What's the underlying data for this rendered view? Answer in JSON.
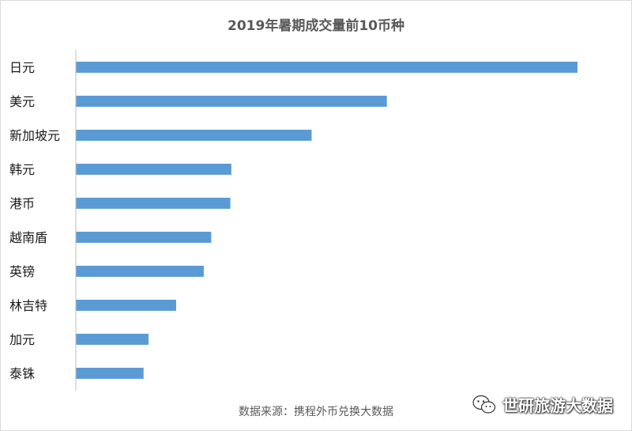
{
  "chart_data": {
    "type": "bar",
    "orientation": "horizontal",
    "title": "2019年暑期成交量前10币种",
    "categories": [
      "日元",
      "美元",
      "新加坡元",
      "韩元",
      "港币",
      "越南盾",
      "英镑",
      "林吉特",
      "加元",
      "泰铢"
    ],
    "values": [
      100,
      62,
      47,
      31,
      30.8,
      27,
      25.5,
      20,
      14.5,
      13.5
    ],
    "xlim": [
      0,
      100
    ],
    "grid": false,
    "legend": "none",
    "bar_color": "#5b9bd5",
    "axis_color": "#bfbfbf"
  },
  "source": "数据来源：携程外币兑换大数据",
  "watermark": {
    "icon": "wechat-icon",
    "text": "世研旅游大数据"
  }
}
